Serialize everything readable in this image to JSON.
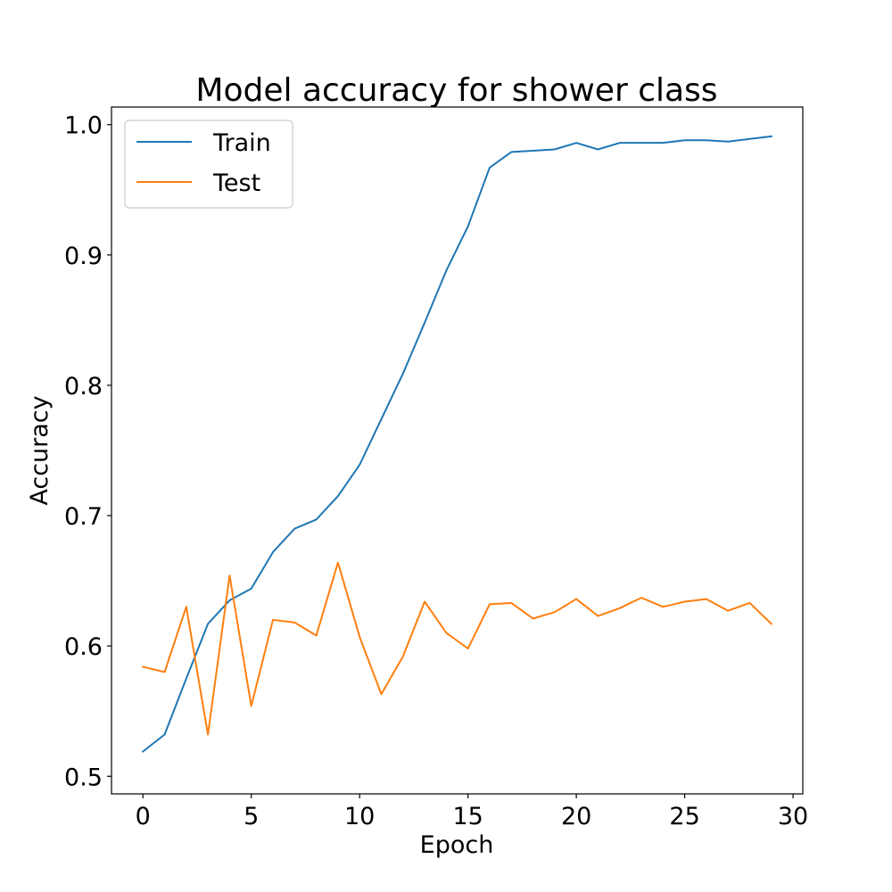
{
  "chart_data": {
    "type": "line",
    "title": "Model accuracy for shower class",
    "xlabel": "Epoch",
    "ylabel": "Accuracy",
    "xlim": [
      -1.45,
      30.45
    ],
    "ylim": [
      0.4865,
      1.0135
    ],
    "xticks": [
      0,
      5,
      10,
      15,
      20,
      25,
      30
    ],
    "yticks": [
      0.5,
      0.6,
      0.7,
      0.8,
      0.9,
      1.0
    ],
    "grid": false,
    "legend_position": "upper left",
    "x": [
      0,
      1,
      2,
      3,
      4,
      5,
      6,
      7,
      8,
      9,
      10,
      11,
      12,
      13,
      14,
      15,
      16,
      17,
      18,
      19,
      20,
      21,
      22,
      23,
      24,
      25,
      26,
      27,
      28,
      29
    ],
    "series": [
      {
        "name": "Train",
        "color": "#1f77b4",
        "values": [
          0.519,
          0.532,
          0.575,
          0.617,
          0.635,
          0.644,
          0.672,
          0.69,
          0.697,
          0.715,
          0.739,
          0.774,
          0.809,
          0.848,
          0.888,
          0.922,
          0.967,
          0.979,
          0.98,
          0.981,
          0.986,
          0.981,
          0.986,
          0.986,
          0.986,
          0.988,
          0.988,
          0.987,
          0.989,
          0.991
        ]
      },
      {
        "name": "Test",
        "color": "#ff7f0e",
        "values": [
          0.584,
          0.58,
          0.63,
          0.532,
          0.654,
          0.554,
          0.62,
          0.618,
          0.608,
          0.664,
          0.607,
          0.563,
          0.592,
          0.634,
          0.61,
          0.598,
          0.632,
          0.633,
          0.621,
          0.626,
          0.636,
          0.623,
          0.629,
          0.637,
          0.63,
          0.634,
          0.636,
          0.627,
          0.633,
          0.617
        ]
      }
    ]
  }
}
